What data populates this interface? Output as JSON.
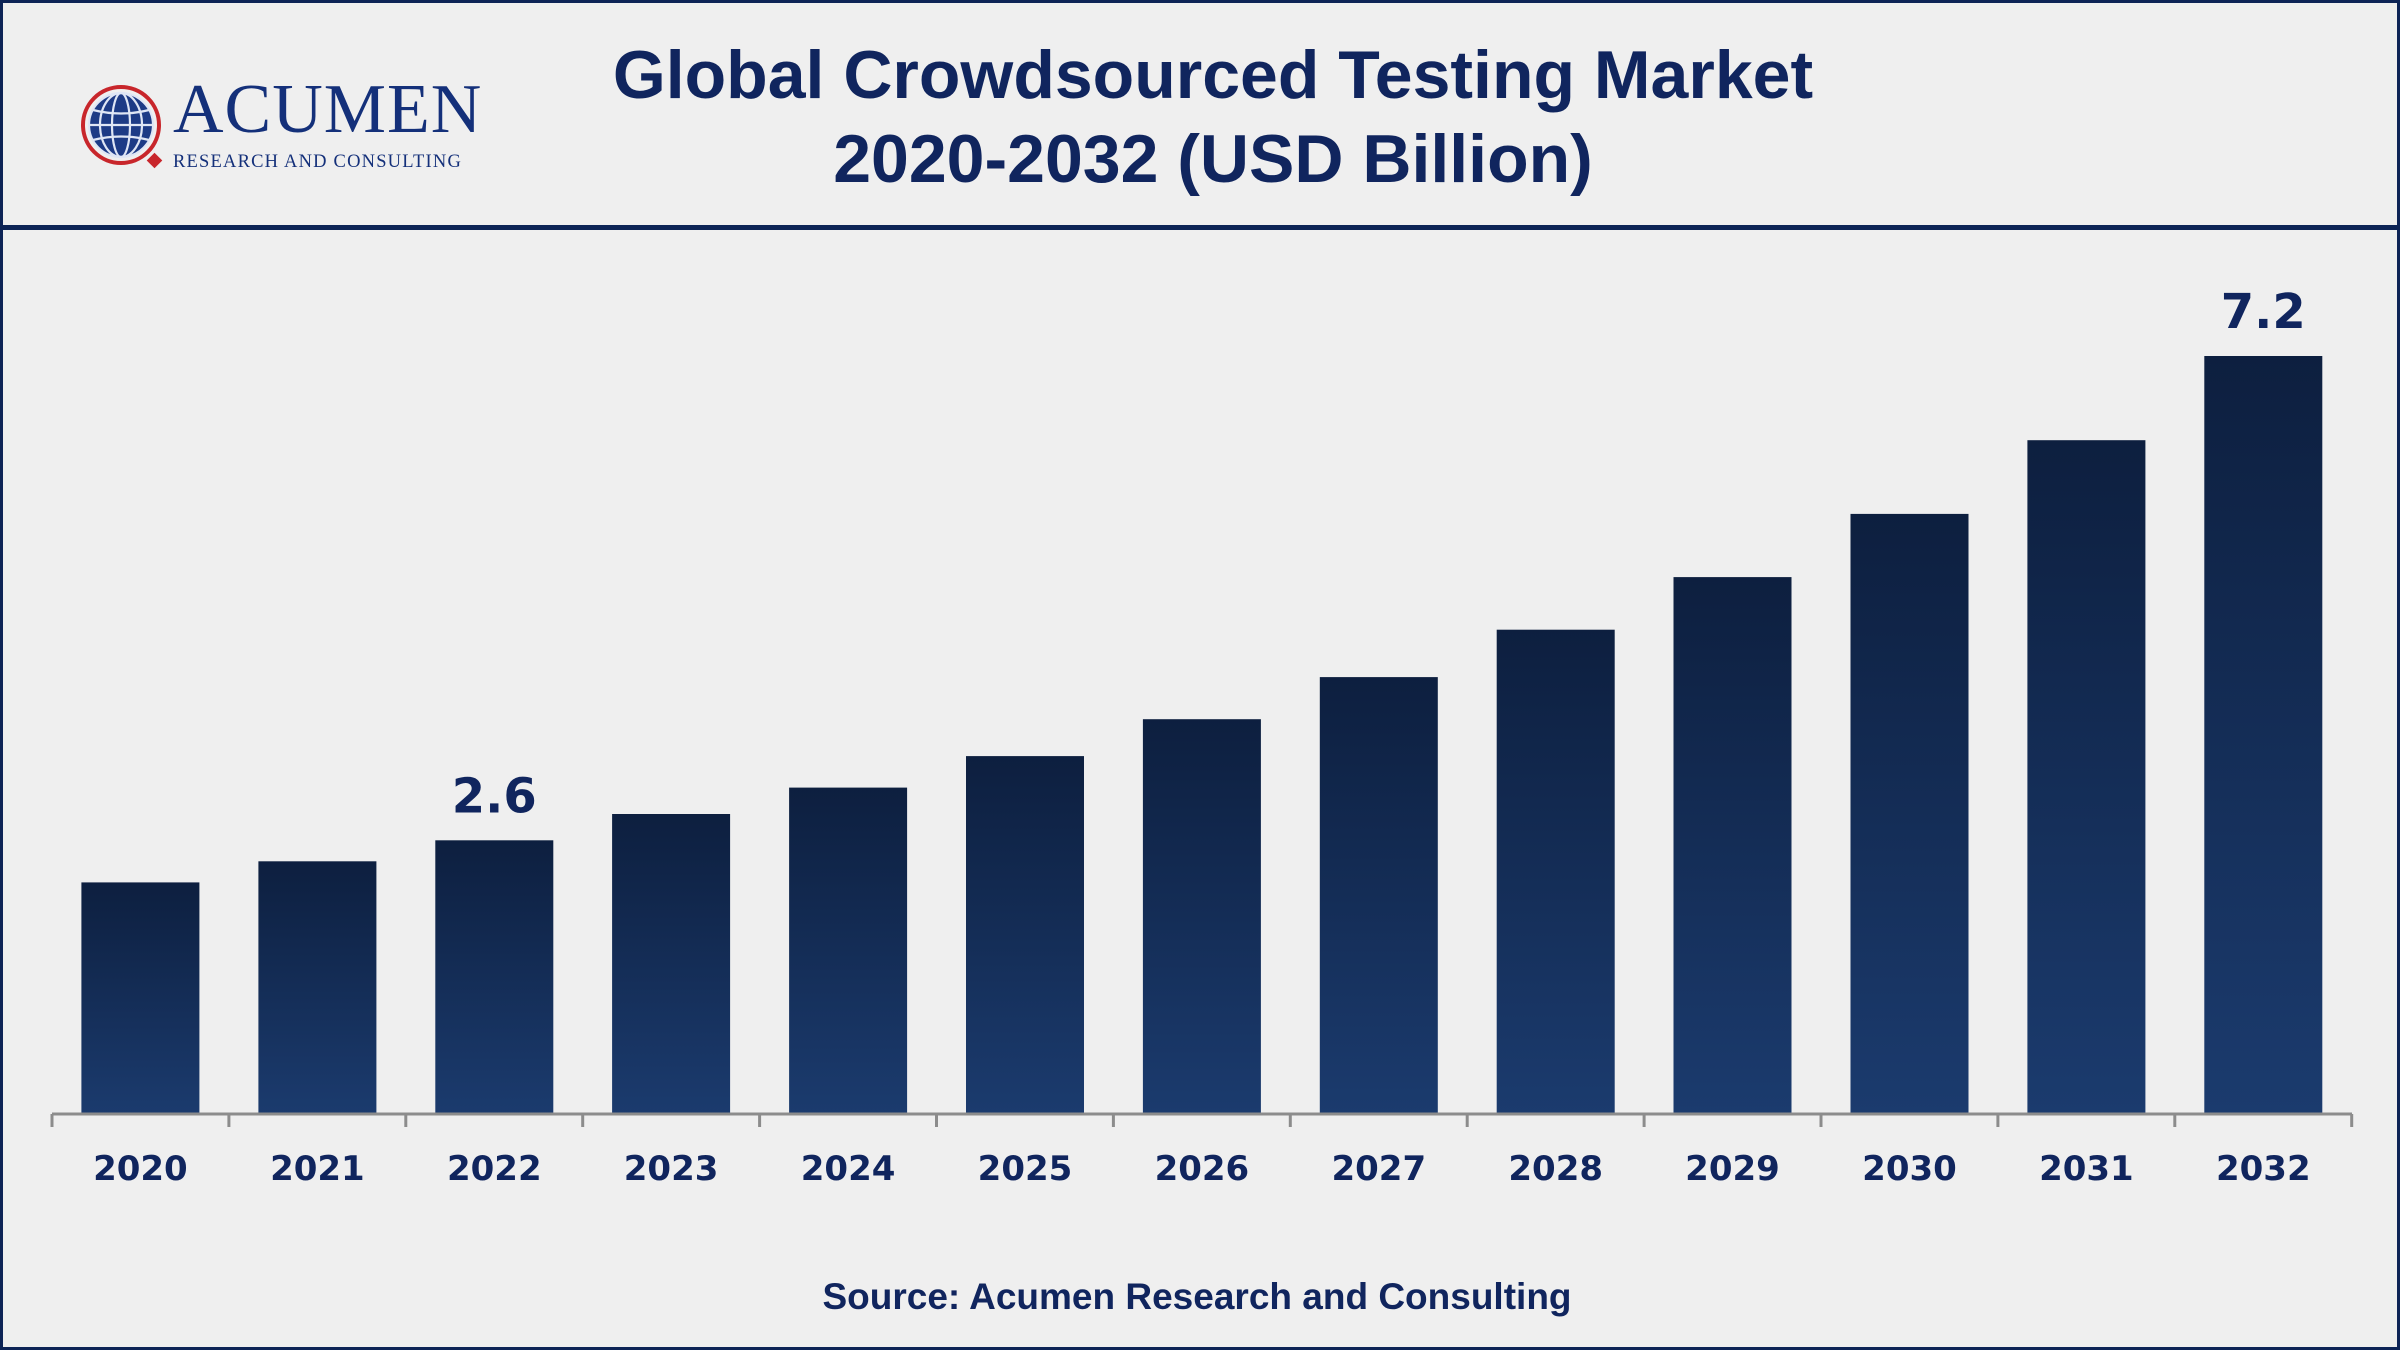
{
  "header": {
    "title_line1": "Global Crowdsourced Testing Market",
    "title_line2": "2020-2032 (USD Billion)"
  },
  "logo": {
    "name": "ACUMEN",
    "tagline": "RESEARCH AND CONSULTING",
    "icon": "globe-icon"
  },
  "colors": {
    "navy": "#10255e",
    "bar_top": "#0d1f3f",
    "bar_bottom": "#1b3b6e",
    "background": "#efefef"
  },
  "chart_data": {
    "type": "bar",
    "categories": [
      "2020",
      "2021",
      "2022",
      "2023",
      "2024",
      "2025",
      "2026",
      "2027",
      "2028",
      "2029",
      "2030",
      "2031",
      "2032"
    ],
    "values": [
      2.2,
      2.4,
      2.6,
      2.85,
      3.1,
      3.4,
      3.75,
      4.15,
      4.6,
      5.1,
      5.7,
      6.4,
      7.2
    ],
    "data_labels": [
      {
        "category": "2022",
        "text": "2.6"
      },
      {
        "category": "2032",
        "text": "7.2"
      }
    ],
    "ylim": [
      0,
      7.2
    ],
    "grid": false,
    "title": "Global Crowdsourced Testing Market 2020-2032 (USD Billion)",
    "xlabel": "",
    "ylabel": ""
  },
  "footer": {
    "source": "Source: Acumen Research and Consulting"
  }
}
